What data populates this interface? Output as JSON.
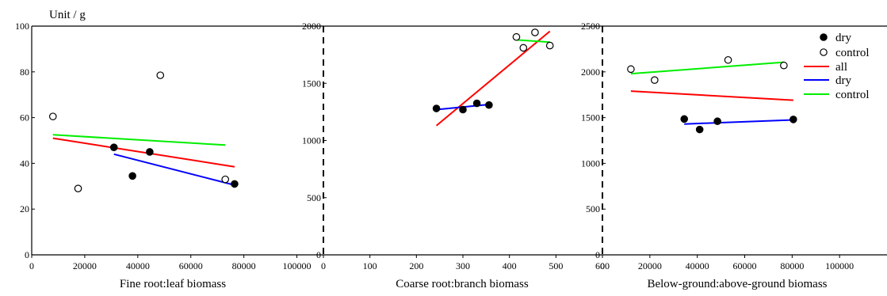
{
  "figure": {
    "unit_label": "Unit / g",
    "legend": {
      "placement": "top-right",
      "entries": [
        {
          "label": "dry",
          "kind": "marker",
          "marker": "filled-circle",
          "color": "#000000"
        },
        {
          "label": "control",
          "kind": "marker",
          "marker": "open-circle",
          "color": "#000000"
        },
        {
          "label": "all",
          "kind": "line",
          "color": "#ff0000"
        },
        {
          "label": "dry",
          "kind": "line",
          "color": "#0000ff"
        },
        {
          "label": "control",
          "kind": "line",
          "color": "#00ee00"
        }
      ]
    }
  },
  "chart_data": [
    {
      "type": "scatter",
      "xlabel": "Fine root:leaf biomass",
      "xlim": [
        0,
        110000
      ],
      "ylim": [
        0,
        100
      ],
      "xticks": [
        0,
        20000,
        40000,
        60000,
        80000,
        100000
      ],
      "yticks": [
        0,
        20,
        40,
        60,
        80,
        100
      ],
      "tick_y_labels": true,
      "series": [
        {
          "name": "dry",
          "marker": "filled",
          "x": [
            31000,
            38000,
            44500,
            76500
          ],
          "y": [
            47,
            34.5,
            45,
            31
          ]
        },
        {
          "name": "control",
          "marker": "open",
          "x": [
            8000,
            17500,
            48500,
            73000
          ],
          "y": [
            60.5,
            29,
            78.5,
            33
          ]
        }
      ],
      "fits": [
        {
          "name": "all",
          "color": "#ff0000",
          "x": [
            8000,
            76500
          ],
          "y": [
            51,
            38.5
          ]
        },
        {
          "name": "dry",
          "color": "#0000ff",
          "x": [
            31000,
            76500
          ],
          "y": [
            44,
            30.5
          ]
        },
        {
          "name": "control",
          "color": "#00ee00",
          "x": [
            8000,
            73000
          ],
          "y": [
            52.5,
            48
          ]
        }
      ]
    },
    {
      "type": "scatter",
      "xlabel": "Coarse root:branch biomass",
      "xlim": [
        0,
        600
      ],
      "ylim": [
        0,
        2000
      ],
      "xticks": [
        0,
        100,
        200,
        300,
        400,
        500,
        600
      ],
      "yticks": [
        0,
        500,
        1000,
        1500,
        2000
      ],
      "tick_y_labels": true,
      "series": [
        {
          "name": "dry",
          "marker": "filled",
          "x": [
            243,
            300,
            330,
            356
          ],
          "y": [
            1280,
            1270,
            1325,
            1310
          ]
        },
        {
          "name": "control",
          "marker": "open",
          "x": [
            415,
            430,
            455,
            487
          ],
          "y": [
            1905,
            1810,
            1945,
            1830
          ]
        }
      ],
      "fits": [
        {
          "name": "all",
          "color": "#ff0000",
          "x": [
            243,
            487
          ],
          "y": [
            1130,
            1955
          ]
        },
        {
          "name": "dry",
          "color": "#0000ff",
          "x": [
            243,
            356
          ],
          "y": [
            1270,
            1315
          ]
        },
        {
          "name": "control",
          "color": "#00ee00",
          "x": [
            415,
            487
          ],
          "y": [
            1880,
            1860
          ]
        }
      ]
    },
    {
      "type": "scatter",
      "xlabel": "Below-ground:above-ground  biomass",
      "xlim": [
        0,
        120000
      ],
      "ylim": [
        0,
        2500
      ],
      "xticks": [
        0,
        20000,
        40000,
        60000,
        80000,
        100000
      ],
      "yticks": [
        0,
        500,
        1000,
        1500,
        2000,
        2500
      ],
      "tick_y_labels": true,
      "series": [
        {
          "name": "dry",
          "marker": "filled",
          "x": [
            34500,
            41000,
            48500,
            80500
          ],
          "y": [
            1485,
            1370,
            1460,
            1480
          ]
        },
        {
          "name": "control",
          "marker": "open",
          "x": [
            12000,
            22000,
            53000,
            76500
          ],
          "y": [
            2030,
            1910,
            2130,
            2070
          ]
        }
      ],
      "fits": [
        {
          "name": "all",
          "color": "#ff0000",
          "x": [
            12000,
            80500
          ],
          "y": [
            1790,
            1690
          ]
        },
        {
          "name": "dry",
          "color": "#0000ff",
          "x": [
            34500,
            80500
          ],
          "y": [
            1430,
            1475
          ]
        },
        {
          "name": "control",
          "color": "#00ee00",
          "x": [
            12000,
            76500
          ],
          "y": [
            1980,
            2105
          ]
        }
      ]
    }
  ]
}
